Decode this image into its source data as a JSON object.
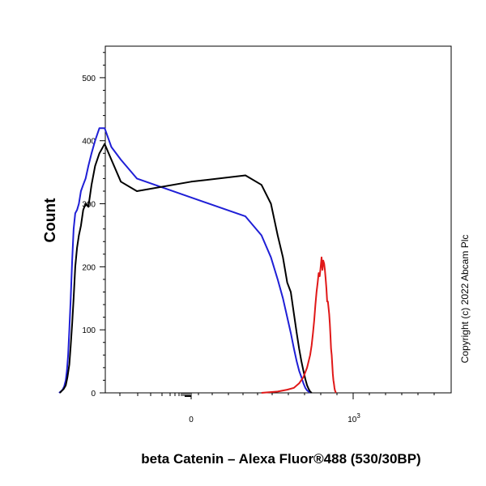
{
  "chart_data": {
    "type": "line",
    "xlabel": "beta Catenin – Alexa Fluor®488 (530/30BP)",
    "ylabel": "Count",
    "ylim": [
      0,
      550
    ],
    "yticks": [
      0,
      100,
      200,
      300,
      400,
      500
    ],
    "ytick_labels": [
      "0",
      "100",
      "200",
      "300",
      "400",
      "500"
    ],
    "xtick_labels": {
      "zero": "0",
      "thousand_base": "10",
      "thousand_exp": "3"
    },
    "grid": false,
    "legend": "none",
    "annotation": "Copyright (c) 2022 Abcam Plc",
    "colors": {
      "blue": "#1f1fd6",
      "black": "#000000",
      "red": "#e01818"
    },
    "series": [
      {
        "color": "blue",
        "points": [
          [
            -280,
            0
          ],
          [
            -260,
            2
          ],
          [
            -240,
            5
          ],
          [
            -225,
            10
          ],
          [
            -210,
            20
          ],
          [
            -200,
            35
          ],
          [
            -190,
            60
          ],
          [
            -180,
            100
          ],
          [
            -170,
            150
          ],
          [
            -160,
            210
          ],
          [
            -150,
            260
          ],
          [
            -140,
            285
          ],
          [
            -130,
            290
          ],
          [
            -120,
            300
          ],
          [
            -110,
            320
          ],
          [
            -100,
            330
          ],
          [
            -90,
            340
          ],
          [
            -80,
            360
          ],
          [
            -70,
            380
          ],
          [
            -60,
            400
          ],
          [
            -50,
            420
          ],
          [
            -40,
            420
          ],
          [
            -30,
            390
          ],
          [
            -20,
            370
          ],
          [
            -10,
            340
          ],
          [
            0,
            310
          ],
          [
            10,
            280
          ],
          [
            20,
            250
          ],
          [
            30,
            215
          ],
          [
            40,
            180
          ],
          [
            50,
            150
          ],
          [
            60,
            120
          ],
          [
            70,
            95
          ],
          [
            80,
            70
          ],
          [
            90,
            50
          ],
          [
            100,
            35
          ],
          [
            110,
            25
          ],
          [
            120,
            15
          ],
          [
            130,
            8
          ],
          [
            140,
            4
          ],
          [
            150,
            2
          ],
          [
            160,
            0
          ]
        ]
      },
      {
        "color": "black",
        "points": [
          [
            -270,
            0
          ],
          [
            -250,
            3
          ],
          [
            -230,
            6
          ],
          [
            -210,
            12
          ],
          [
            -195,
            25
          ],
          [
            -180,
            45
          ],
          [
            -170,
            75
          ],
          [
            -160,
            110
          ],
          [
            -150,
            150
          ],
          [
            -140,
            200
          ],
          [
            -130,
            230
          ],
          [
            -120,
            250
          ],
          [
            -110,
            265
          ],
          [
            -100,
            290
          ],
          [
            -90,
            300
          ],
          [
            -80,
            295
          ],
          [
            -70,
            330
          ],
          [
            -60,
            360
          ],
          [
            -50,
            380
          ],
          [
            -40,
            395
          ],
          [
            -30,
            370
          ],
          [
            -20,
            335
          ],
          [
            -10,
            320
          ],
          [
            0,
            335
          ],
          [
            10,
            345
          ],
          [
            20,
            330
          ],
          [
            30,
            300
          ],
          [
            40,
            250
          ],
          [
            50,
            215
          ],
          [
            60,
            175
          ],
          [
            70,
            160
          ],
          [
            80,
            125
          ],
          [
            90,
            95
          ],
          [
            100,
            70
          ],
          [
            110,
            50
          ],
          [
            120,
            35
          ],
          [
            130,
            22
          ],
          [
            140,
            12
          ],
          [
            150,
            6
          ],
          [
            160,
            2
          ],
          [
            170,
            0
          ]
        ]
      },
      {
        "color": "red",
        "points": [
          [
            20,
            0
          ],
          [
            40,
            2
          ],
          [
            60,
            5
          ],
          [
            80,
            8
          ],
          [
            100,
            15
          ],
          [
            120,
            25
          ],
          [
            140,
            40
          ],
          [
            160,
            60
          ],
          [
            170,
            75
          ],
          [
            180,
            95
          ],
          [
            190,
            115
          ],
          [
            200,
            140
          ],
          [
            210,
            160
          ],
          [
            220,
            175
          ],
          [
            230,
            190
          ],
          [
            240,
            185
          ],
          [
            250,
            200
          ],
          [
            260,
            215
          ],
          [
            270,
            195
          ],
          [
            280,
            210
          ],
          [
            290,
            205
          ],
          [
            300,
            195
          ],
          [
            310,
            180
          ],
          [
            320,
            165
          ],
          [
            330,
            145
          ],
          [
            340,
            145
          ],
          [
            350,
            135
          ],
          [
            360,
            125
          ],
          [
            370,
            110
          ],
          [
            380,
            90
          ],
          [
            390,
            70
          ],
          [
            400,
            60
          ],
          [
            410,
            45
          ],
          [
            420,
            30
          ],
          [
            430,
            20
          ],
          [
            440,
            15
          ],
          [
            450,
            8
          ],
          [
            460,
            4
          ],
          [
            470,
            2
          ],
          [
            480,
            0
          ]
        ]
      }
    ]
  }
}
